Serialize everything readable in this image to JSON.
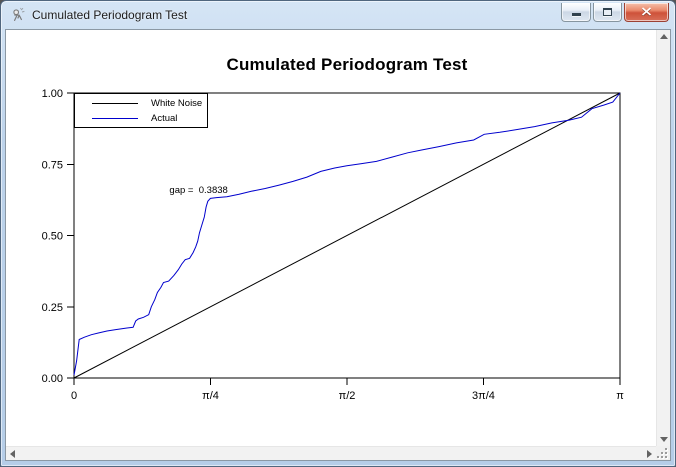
{
  "window": {
    "title": "Cumulated Periodogram Test",
    "controls": {
      "minimize_label": "Minimize",
      "restore_label": "Restore",
      "close_label": "Close"
    }
  },
  "icons": {
    "app": "application-icon",
    "minimize": "minimize-bar",
    "restore": "restore-square",
    "close": "close-x",
    "scroll_up": "up-triangle",
    "scroll_down": "down-triangle",
    "scroll_left": "left-triangle",
    "scroll_right": "right-triangle",
    "resize_grip": "dotted-grip"
  },
  "chart_data": {
    "type": "line",
    "title": "Cumulated Periodogram Test",
    "xlabel": "",
    "ylabel": "",
    "xlim": [
      0,
      3.1415927
    ],
    "ylim": [
      0,
      1
    ],
    "grid": false,
    "frame": true,
    "x_ticks": [
      {
        "value": 0,
        "label": "0"
      },
      {
        "value": 0.7853982,
        "label": "π/4"
      },
      {
        "value": 1.5707963,
        "label": "π/2"
      },
      {
        "value": 2.3561945,
        "label": "3π/4"
      },
      {
        "value": 3.1415927,
        "label": "π"
      }
    ],
    "y_ticks": [
      {
        "value": 0.0,
        "label": "0.00"
      },
      {
        "value": 0.25,
        "label": "0.25"
      },
      {
        "value": 0.5,
        "label": "0.50"
      },
      {
        "value": 0.75,
        "label": "0.75"
      },
      {
        "value": 1.0,
        "label": "1.00"
      }
    ],
    "legend": {
      "position": "top-left",
      "entries": [
        {
          "name": "White Noise",
          "color": "#000000"
        },
        {
          "name": "Actual",
          "color": "#0000cd"
        }
      ]
    },
    "annotation": {
      "text": "gap =  0.3838",
      "x": 0.885,
      "y": 0.655,
      "anchor": "end"
    },
    "series": [
      {
        "name": "White Noise",
        "color": "#000000",
        "x": [
          0,
          3.1415927
        ],
        "y": [
          0,
          1
        ]
      },
      {
        "name": "Actual",
        "color": "#0000cd",
        "x": [
          0,
          0.015,
          0.03,
          0.06,
          0.1,
          0.14,
          0.19,
          0.24,
          0.3,
          0.34,
          0.355,
          0.37,
          0.4,
          0.43,
          0.445,
          0.465,
          0.48,
          0.5,
          0.515,
          0.545,
          0.575,
          0.6,
          0.62,
          0.64,
          0.665,
          0.685,
          0.7,
          0.712,
          0.722,
          0.735,
          0.75,
          0.76,
          0.77,
          0.785,
          0.82,
          0.88,
          0.95,
          1.02,
          1.1,
          1.18,
          1.26,
          1.34,
          1.42,
          1.5,
          1.57,
          1.65,
          1.74,
          1.83,
          1.92,
          2.0,
          2.1,
          2.2,
          2.3,
          2.36,
          2.45,
          2.55,
          2.65,
          2.75,
          2.85,
          2.92,
          2.98,
          3.05,
          3.1,
          3.1415927
        ],
        "y": [
          0.01,
          0.06,
          0.135,
          0.143,
          0.152,
          0.158,
          0.165,
          0.17,
          0.175,
          0.178,
          0.2,
          0.207,
          0.213,
          0.222,
          0.25,
          0.275,
          0.3,
          0.318,
          0.335,
          0.34,
          0.36,
          0.38,
          0.4,
          0.415,
          0.42,
          0.44,
          0.46,
          0.48,
          0.51,
          0.535,
          0.565,
          0.6,
          0.62,
          0.63,
          0.633,
          0.636,
          0.645,
          0.655,
          0.665,
          0.677,
          0.69,
          0.705,
          0.725,
          0.737,
          0.745,
          0.752,
          0.76,
          0.775,
          0.79,
          0.8,
          0.812,
          0.825,
          0.835,
          0.855,
          0.862,
          0.872,
          0.882,
          0.895,
          0.905,
          0.915,
          0.945,
          0.958,
          0.968,
          1.0
        ]
      }
    ]
  }
}
